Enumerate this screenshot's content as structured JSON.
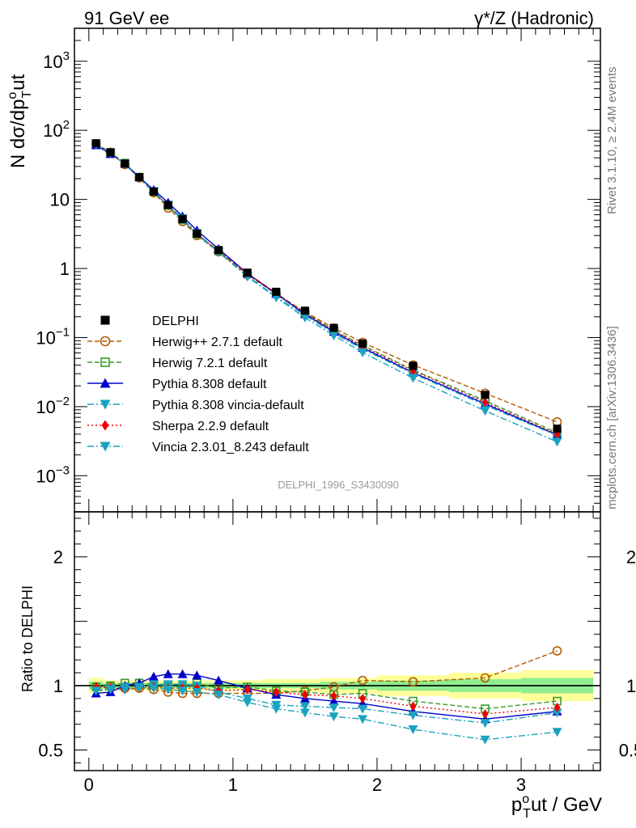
{
  "header": {
    "left": "91 GeV ee",
    "right": "γ*/Z (Hadronic)"
  },
  "side_labels": {
    "top": "Rivet 3.1.10, ≥ 2.4M events",
    "bottom": "mcplots.cern.ch [arXiv:1306.3436]"
  },
  "analysis_label": "DELPHI_1996_S3430090",
  "chart_data": [
    {
      "type": "line",
      "panel": "main",
      "yscale": "log",
      "ylabel": "N dσ/dpToᵘᵗ",
      "ylabel_parts": {
        "main": "N dσ/dp",
        "sup": "o",
        "sub": "T",
        "tail": "ut"
      },
      "xlim": [
        -0.1,
        3.55
      ],
      "ylim": [
        0.0003,
        3000
      ],
      "y_ticks": [
        {
          "value": 0.001,
          "base": "10",
          "exp": "−3"
        },
        {
          "value": 0.01,
          "base": "10",
          "exp": "−2"
        },
        {
          "value": 0.1,
          "base": "10",
          "exp": "−1"
        },
        {
          "value": 1,
          "label": "1"
        },
        {
          "value": 10,
          "label": "10"
        },
        {
          "value": 100,
          "base": "10",
          "exp": "2"
        },
        {
          "value": 1000,
          "base": "10",
          "exp": "3"
        }
      ],
      "x": [
        0.05,
        0.15,
        0.25,
        0.35,
        0.45,
        0.55,
        0.65,
        0.75,
        0.9,
        1.1,
        1.3,
        1.5,
        1.7,
        1.9,
        2.25,
        2.75,
        3.25
      ],
      "legend_position": "bottom-left",
      "series": [
        {
          "name": "DELPHI",
          "color": "#000000",
          "marker": "square-filled",
          "line": "none",
          "values": [
            65,
            48,
            33,
            21,
            13,
            8.3,
            5.2,
            3.2,
            1.85,
            0.87,
            0.46,
            0.245,
            0.138,
            0.082,
            0.039,
            0.0148,
            0.0048
          ]
        },
        {
          "name": "Herwig++ 2.7.1 default",
          "color": "#b35a00",
          "marker": "circle-open",
          "line": "dashed",
          "values": [
            64,
            48,
            32,
            20.5,
            12.5,
            7.5,
            4.8,
            3.0,
            1.75,
            0.81,
            0.43,
            0.235,
            0.137,
            0.085,
            0.04,
            0.0156,
            0.006
          ]
        },
        {
          "name": "Herwig 7.2.1 default",
          "color": "#3c9a2a",
          "marker": "square-open",
          "line": "dashed",
          "values": [
            64,
            48,
            33.5,
            21,
            13,
            8.2,
            5.1,
            3.15,
            1.8,
            0.85,
            0.44,
            0.23,
            0.127,
            0.077,
            0.034,
            0.0122,
            0.0042
          ]
        },
        {
          "name": "Pythia 8.308 default",
          "color": "#0000cc",
          "marker": "triangle-up",
          "line": "solid",
          "values": [
            61,
            45.5,
            33,
            21,
            13.7,
            9.0,
            5.7,
            3.55,
            1.92,
            0.85,
            0.43,
            0.218,
            0.121,
            0.071,
            0.031,
            0.011,
            0.0039
          ]
        },
        {
          "name": "Pythia 8.308 vincia-default",
          "color": "#1aa3bf",
          "marker": "triangle-down",
          "line": "dashdot",
          "values": [
            62,
            47,
            32.5,
            20.5,
            13,
            8.3,
            5.3,
            3.25,
            1.75,
            0.78,
            0.39,
            0.21,
            0.115,
            0.068,
            0.03,
            0.0105,
            0.0038
          ]
        },
        {
          "name": "Sherpa 2.2.9 default",
          "color": "#ee0000",
          "marker": "diamond",
          "line": "dotted",
          "values": [
            64,
            47,
            32,
            20.5,
            12.8,
            8.1,
            5.1,
            3.15,
            1.75,
            0.85,
            0.44,
            0.228,
            0.127,
            0.074,
            0.033,
            0.0116,
            0.004
          ]
        },
        {
          "name": "Vincia 2.3.01_8.243 default",
          "color": "#1aa3bf",
          "marker": "triangle-down",
          "line": "dashdot",
          "values": [
            62,
            47,
            32,
            20.5,
            12.8,
            8.1,
            5.0,
            3.1,
            1.72,
            0.76,
            0.38,
            0.194,
            0.107,
            0.061,
            0.026,
            0.0087,
            0.0031
          ]
        }
      ]
    },
    {
      "type": "line",
      "panel": "ratio",
      "ylabel": "Ratio to DELPHI",
      "xlabel": "pToᵘᵗ / GeV",
      "xlabel_parts": {
        "main": "p",
        "sup": "o",
        "sub": "T",
        "tail": "ut / GeV"
      },
      "xlim": [
        -0.1,
        3.55
      ],
      "ylim": [
        0.34,
        2.35
      ],
      "x_ticks": [
        "0",
        "1",
        "2",
        "3"
      ],
      "y_ticks": [
        "0.5",
        "1",
        "2"
      ],
      "x": [
        0.05,
        0.15,
        0.25,
        0.35,
        0.45,
        0.55,
        0.65,
        0.75,
        0.9,
        1.1,
        1.3,
        1.5,
        1.7,
        1.9,
        2.25,
        2.75,
        3.25
      ],
      "reference_bands": {
        "x_edges": [
          0,
          0.1,
          0.2,
          0.3,
          0.4,
          0.5,
          0.6,
          0.7,
          0.8,
          1.0,
          1.2,
          1.4,
          1.6,
          1.8,
          2.0,
          2.5,
          3.0,
          3.5
        ],
        "stat_halfwidth": [
          0.03,
          0.02,
          0.02,
          0.02,
          0.02,
          0.02,
          0.02,
          0.02,
          0.02,
          0.02,
          0.02,
          0.02,
          0.03,
          0.03,
          0.04,
          0.05,
          0.06
        ],
        "total_halfwidth": [
          0.06,
          0.04,
          0.04,
          0.04,
          0.04,
          0.04,
          0.04,
          0.04,
          0.04,
          0.04,
          0.05,
          0.05,
          0.06,
          0.06,
          0.08,
          0.1,
          0.12
        ],
        "inner_color": "#90ee90",
        "outer_color": "#ffff99"
      },
      "series": [
        {
          "name": "Herwig++ 2.7.1 default",
          "color": "#b35a00",
          "marker": "circle-open",
          "line": "dashed",
          "values": [
            0.99,
            0.99,
            0.98,
            0.98,
            0.97,
            0.95,
            0.94,
            0.94,
            0.94,
            0.94,
            0.94,
            0.96,
            0.99,
            1.04,
            1.03,
            1.06,
            1.27
          ]
        },
        {
          "name": "Herwig 7.2.1 default",
          "color": "#3c9a2a",
          "marker": "square-open",
          "line": "dashed",
          "values": [
            0.99,
            1.0,
            1.02,
            1.02,
            1.01,
            1.0,
            0.99,
            1.02,
            0.98,
            0.99,
            0.96,
            0.95,
            0.93,
            0.94,
            0.88,
            0.82,
            0.88
          ]
        },
        {
          "name": "Pythia 8.308 default",
          "color": "#0000cc",
          "marker": "triangle-up",
          "line": "solid",
          "values": [
            0.94,
            0.95,
            1.0,
            1.02,
            1.07,
            1.09,
            1.09,
            1.08,
            1.04,
            0.98,
            0.93,
            0.9,
            0.88,
            0.86,
            0.8,
            0.74,
            0.8
          ]
        },
        {
          "name": "Pythia 8.308 vincia-default",
          "color": "#1aa3bf",
          "marker": "triangle-down",
          "line": "dashdot",
          "values": [
            0.96,
            0.98,
            0.99,
            0.99,
            1.01,
            1.01,
            1.01,
            1.0,
            0.95,
            0.9,
            0.85,
            0.84,
            0.83,
            0.82,
            0.77,
            0.71,
            0.79
          ]
        },
        {
          "name": "Sherpa 2.2.9 default",
          "color": "#ee0000",
          "marker": "diamond",
          "line": "dotted",
          "values": [
            0.99,
            0.98,
            0.97,
            0.98,
            0.99,
            0.98,
            0.98,
            0.98,
            0.96,
            0.97,
            0.95,
            0.93,
            0.92,
            0.9,
            0.84,
            0.78,
            0.83
          ]
        },
        {
          "name": "Vincia 2.3.01_8.243 default",
          "color": "#1aa3bf",
          "marker": "triangle-down",
          "line": "dashdot",
          "values": [
            0.96,
            0.97,
            0.97,
            0.98,
            0.98,
            0.97,
            0.96,
            0.95,
            0.93,
            0.87,
            0.82,
            0.79,
            0.76,
            0.74,
            0.66,
            0.58,
            0.64
          ]
        }
      ]
    }
  ]
}
